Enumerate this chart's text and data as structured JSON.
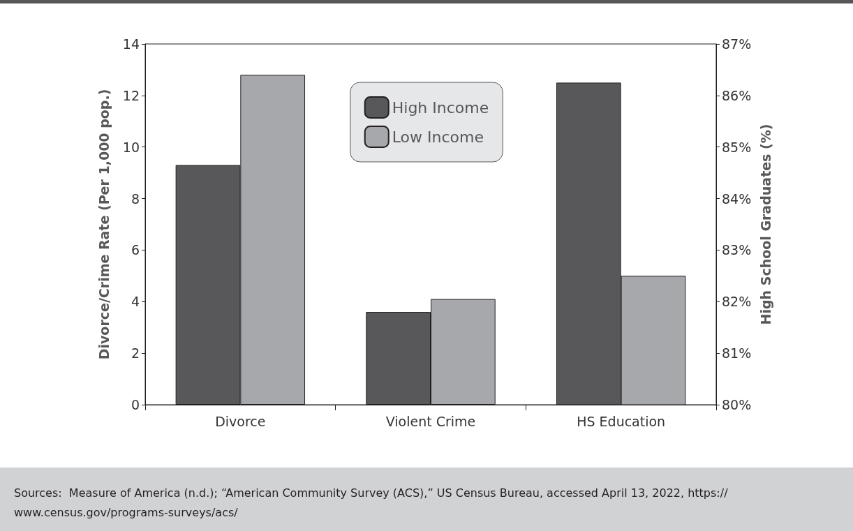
{
  "chart_data": {
    "type": "bar",
    "categories": [
      "Divorce",
      "Violent Crime",
      "HS Education"
    ],
    "ylabel": "Divorce/Crime Rate (Per 1,000 pop.)",
    "y2label": "High School Graduates (%)",
    "ylim": [
      0,
      14
    ],
    "yticks": [
      0,
      2,
      4,
      6,
      8,
      10,
      12,
      14
    ],
    "y2lim": [
      80,
      87
    ],
    "y2ticks": [
      {
        "value": 80,
        "label": "80%"
      },
      {
        "value": 81,
        "label": "81%"
      },
      {
        "value": 82,
        "label": "82%"
      },
      {
        "value": 83,
        "label": "83%"
      },
      {
        "value": 84,
        "label": "84%"
      },
      {
        "value": 85,
        "label": "85%"
      },
      {
        "value": 86,
        "label": "86%"
      },
      {
        "value": 87,
        "label": "87%"
      }
    ],
    "series": [
      {
        "name": "High Income",
        "color": "#58585a",
        "values": [
          9.3,
          3.6,
          null
        ]
      },
      {
        "name": "Low Income",
        "color": "#a7a8ab",
        "values": [
          12.8,
          4.1,
          null
        ]
      },
      {
        "color": "#58585a",
        "axis": "y2",
        "values": [
          null,
          null,
          86.25
        ]
      },
      {
        "color": "#a7a8ab",
        "axis": "y2",
        "values": [
          null,
          null,
          82.5
        ]
      }
    ],
    "legend": "top",
    "grid": false,
    "annotations": [
      "Sources:  Measure of America (n.d.); “American Community Survey (ACS),” US Census Bureau, accessed April 13, 2022, https://www.census.gov/programs-surveys/acs/"
    ]
  }
}
